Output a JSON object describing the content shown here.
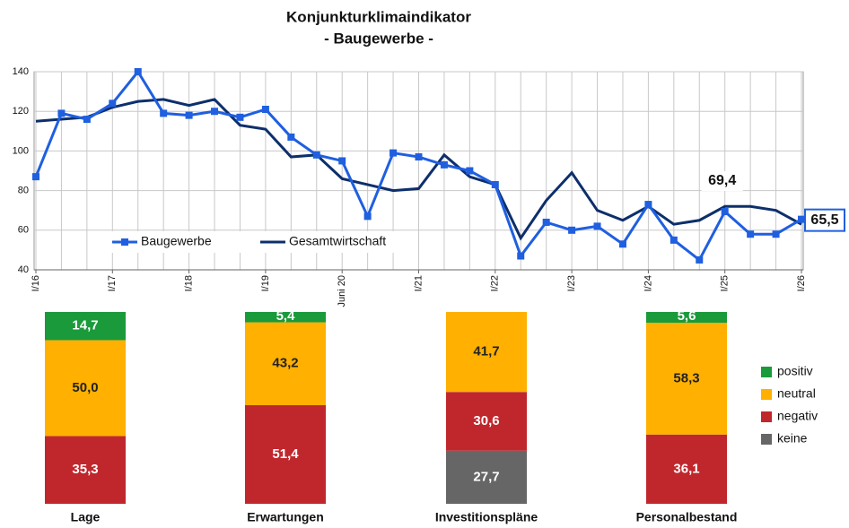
{
  "chart_data": [
    {
      "type": "line",
      "title": "Konjunkturklimaindikator",
      "subtitle": "- Baugewerbe -",
      "categories": [
        "I/16",
        null,
        null,
        "I/17",
        null,
        null,
        "I/18",
        null,
        null,
        "I/19",
        null,
        null,
        "Juni 20",
        null,
        null,
        "I/21",
        null,
        null,
        "I/22",
        null,
        null,
        "I/23",
        null,
        null,
        "I/24",
        null,
        null,
        "I/25",
        null,
        null,
        "I/26"
      ],
      "series": [
        {
          "name": "Baugewerbe",
          "color": "#1f5fe0",
          "values": [
            87,
            119,
            116,
            124,
            140,
            119,
            118,
            120,
            117,
            121,
            107,
            98,
            95,
            67,
            99,
            97,
            93,
            90,
            83,
            47,
            64,
            60,
            62,
            53,
            73,
            55,
            45,
            69.4,
            58,
            58,
            65.5
          ],
          "value_labels": [
            null,
            null,
            null,
            null,
            null,
            null,
            null,
            null,
            null,
            null,
            null,
            null,
            null,
            null,
            null,
            null,
            null,
            null,
            null,
            null,
            null,
            null,
            null,
            null,
            null,
            null,
            null,
            "69,4",
            null,
            null,
            "65,5"
          ]
        },
        {
          "name": "Gesamtwirtschaft",
          "color": "#0d2f6b",
          "values": [
            115,
            116,
            117,
            122,
            125,
            126,
            123,
            126,
            113,
            111,
            97,
            98,
            86,
            83,
            80,
            81,
            98,
            87,
            83,
            56,
            75,
            89,
            70,
            65,
            72,
            63,
            65,
            72,
            72,
            70,
            63
          ]
        }
      ],
      "ylim": [
        40,
        140
      ],
      "yticks": [
        40,
        60,
        80,
        100,
        120,
        140
      ],
      "grid": true
    },
    {
      "type": "stacked_bar",
      "categories": [
        "Lage",
        "Erwartungen",
        "Investitionspläne",
        "Personalbestand"
      ],
      "series": [
        {
          "name": "positiv",
          "color": "#1a9a3a",
          "values": [
            14.7,
            5.4,
            null,
            5.6
          ],
          "value_labels": [
            "14,7",
            "5,4",
            null,
            "5,6"
          ]
        },
        {
          "name": "neutral",
          "color": "#ffb000",
          "values": [
            50.0,
            43.2,
            41.7,
            58.3
          ],
          "value_labels": [
            "50,0",
            "43,2",
            "41,7",
            "58,3"
          ]
        },
        {
          "name": "negativ",
          "color": "#c0272d",
          "values": [
            35.3,
            51.4,
            30.6,
            36.1
          ],
          "value_labels": [
            "35,3",
            "51,4",
            "30,6",
            "36,1"
          ]
        },
        {
          "name": "keine",
          "color": "#666666",
          "values": [
            null,
            null,
            27.7,
            null
          ],
          "value_labels": [
            null,
            null,
            "27,7",
            null
          ]
        }
      ]
    }
  ]
}
